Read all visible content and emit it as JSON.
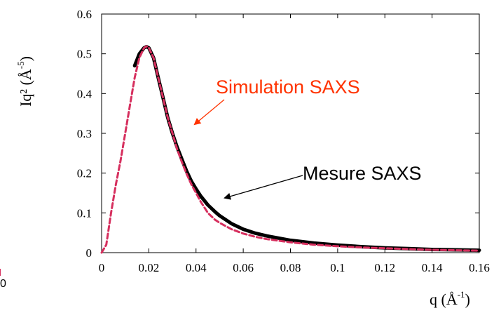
{
  "chart_data": {
    "type": "line",
    "xlabel": "q (Å",
    "xlabel_exp": "-1",
    "xlabel_close": ")",
    "ylabel": "Iq² (Å",
    "ylabel_exp": "-5",
    "ylabel_close": ")",
    "xlim": [
      0,
      0.16
    ],
    "ylim": [
      0,
      0.6
    ],
    "xticks": [
      0,
      0.02,
      0.04,
      0.06,
      0.08,
      0.1,
      0.12,
      0.14,
      0.16
    ],
    "xtick_labels": [
      "0",
      "0.02",
      "0.04",
      "0.06",
      "0.08",
      "0.1",
      "0.12",
      "0.14",
      "0.16"
    ],
    "yticks": [
      0,
      0.1,
      0.2,
      0.3,
      0.4,
      0.5,
      0.6
    ],
    "ytick_labels": [
      "0",
      "0.1",
      "0.2",
      "0.3",
      "0.4",
      "0.5",
      "0.6"
    ],
    "grid": false,
    "series": [
      {
        "name": "Mesure SAXS",
        "color": "#000000",
        "style": "solid",
        "x": [
          0.014,
          0.016,
          0.018,
          0.019,
          0.02,
          0.022,
          0.024,
          0.026,
          0.028,
          0.03,
          0.032,
          0.034,
          0.036,
          0.038,
          0.04,
          0.042,
          0.045,
          0.048,
          0.05,
          0.055,
          0.06,
          0.065,
          0.07,
          0.08,
          0.09,
          0.1,
          0.11,
          0.12,
          0.13,
          0.14,
          0.15,
          0.16
        ],
        "y": [
          0.47,
          0.5,
          0.515,
          0.518,
          0.515,
          0.49,
          0.44,
          0.39,
          0.34,
          0.3,
          0.265,
          0.235,
          0.205,
          0.18,
          0.16,
          0.142,
          0.12,
          0.103,
          0.093,
          0.073,
          0.059,
          0.049,
          0.042,
          0.031,
          0.024,
          0.019,
          0.015,
          0.012,
          0.01,
          0.008,
          0.007,
          0.006
        ]
      },
      {
        "name": "Simulation SAXS",
        "color": "#d62f5e",
        "style": "dashed",
        "x": [
          0.0,
          0.002,
          0.004,
          0.006,
          0.008,
          0.01,
          0.012,
          0.014,
          0.016,
          0.018,
          0.019,
          0.02,
          0.022,
          0.024,
          0.026,
          0.028,
          0.03,
          0.032,
          0.034,
          0.036,
          0.038,
          0.04,
          0.042,
          0.045,
          0.048,
          0.05,
          0.055,
          0.06,
          0.065,
          0.07,
          0.08,
          0.09,
          0.1,
          0.11,
          0.12,
          0.13,
          0.14,
          0.15,
          0.16
        ],
        "y": [
          0.0,
          0.02,
          0.1,
          0.17,
          0.23,
          0.3,
          0.37,
          0.44,
          0.49,
          0.515,
          0.519,
          0.515,
          0.49,
          0.44,
          0.39,
          0.34,
          0.3,
          0.26,
          0.228,
          0.198,
          0.172,
          0.15,
          0.128,
          0.1,
          0.083,
          0.075,
          0.059,
          0.048,
          0.04,
          0.034,
          0.026,
          0.02,
          0.016,
          0.013,
          0.011,
          0.009,
          0.007,
          0.006,
          0.005
        ]
      }
    ],
    "annotations": [
      {
        "text": "Simulation SAXS",
        "color": "#ff3300",
        "series": "Simulation SAXS"
      },
      {
        "text": "Mesure SAXS",
        "color": "#000000",
        "series": "Mesure SAXS"
      }
    ],
    "stray_label": "0"
  }
}
